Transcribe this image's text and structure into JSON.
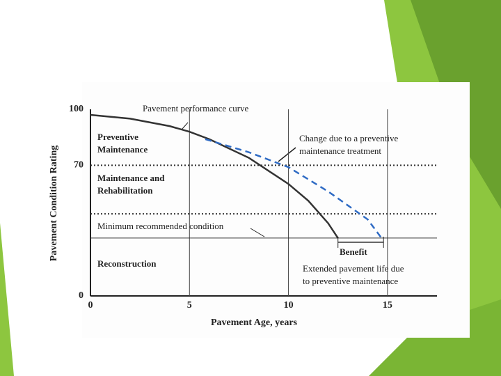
{
  "chart_data": {
    "type": "line",
    "xlabel": "Pavement Age, years",
    "ylabel": "Pavement Condition Rating",
    "xlim": [
      0,
      17.5
    ],
    "ylim": [
      0,
      100
    ],
    "xticks": [
      0,
      5,
      10,
      15
    ],
    "yticks": [
      0,
      70,
      100
    ],
    "grid": true,
    "series": [
      {
        "name": "Pavement performance curve",
        "color": "#333333",
        "dash": false,
        "x": [
          0,
          2,
          4,
          5,
          6,
          8,
          10,
          11,
          12,
          12.5
        ],
        "values": [
          97,
          95,
          91,
          88,
          84,
          74,
          60,
          51,
          39,
          31
        ]
      },
      {
        "name": "Change due to a preventive maintenance treatment",
        "color": "#2f6bc4",
        "dash": true,
        "x": [
          5.8,
          8,
          10,
          12,
          14,
          14.7
        ],
        "values": [
          84,
          77,
          69,
          56,
          41,
          31
        ]
      }
    ],
    "hlines": [
      {
        "value": 70,
        "style": "dotted"
      },
      {
        "value": 44,
        "style": "dotted"
      },
      {
        "value": 31,
        "style": "solid"
      }
    ],
    "benefit_range": [
      12.5,
      14.8
    ],
    "annotations": [
      [
        "Pavement performance curve"
      ],
      [
        "Change due to a preventive",
        "maintenance treatment"
      ],
      [
        "Preventive",
        "Maintenance"
      ],
      [
        "Maintenance and",
        "Rehabilitation"
      ],
      [
        "Minimum recommended condition"
      ],
      [
        "Reconstruction"
      ],
      [
        "Benefit"
      ],
      [
        "Extended pavement life due",
        "to preventive maintenance"
      ]
    ]
  }
}
